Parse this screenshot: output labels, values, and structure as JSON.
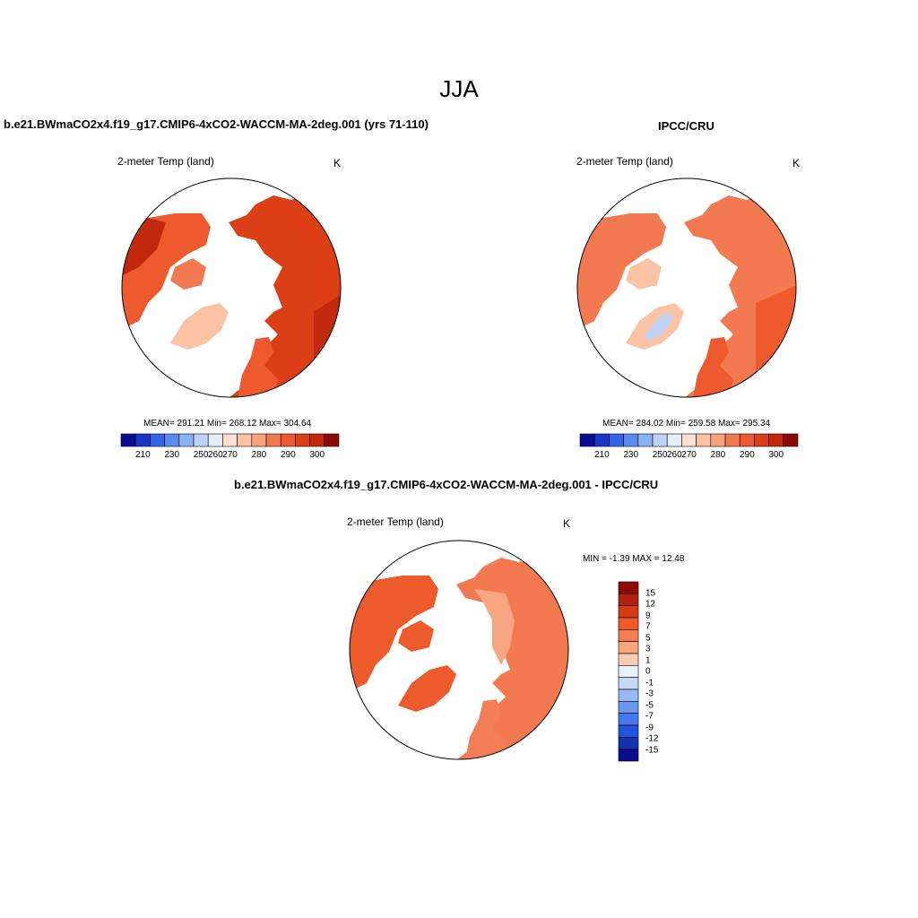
{
  "title": "JJA",
  "panels": [
    {
      "id": "model",
      "subtitle": "b.e21.BWmaCO2x4.f19_g17.CMIP6-4xCO2-WACCM-MA-2deg.001 (yrs 71-110)",
      "variable": "2-meter Temp (land)",
      "units": "K",
      "stats": "MEAN= 291.21   Min= 268.12   Max= 304.64",
      "colorbar_labels": [
        "210",
        "230",
        "250",
        "260",
        "270",
        "280",
        "290",
        "300"
      ]
    },
    {
      "id": "obs",
      "subtitle": "IPCC/CRU",
      "variable": "2-meter Temp (land)",
      "units": "K",
      "stats": "MEAN= 284.02   Min= 259.58   Max= 295.34",
      "colorbar_labels": [
        "210",
        "230",
        "250",
        "260",
        "270",
        "280",
        "290",
        "300"
      ]
    },
    {
      "id": "diff",
      "subtitle": "b.e21.BWmaCO2x4.f19_g17.CMIP6-4xCO2-WACCM-MA-2deg.001 - IPCC/CRU",
      "variable": "2-meter Temp (land)",
      "units": "K",
      "stats": "MIN =  -1.39 MAX =  12.48",
      "colorbar_labels": [
        "15",
        "12",
        "9",
        "7",
        "5",
        "3",
        "1",
        "0",
        "-1",
        "-3",
        "-5",
        "-7",
        "-9",
        "-12",
        "-15"
      ]
    }
  ],
  "colormap_abs": [
    "#0a0d8f",
    "#1a35c4",
    "#3565e6",
    "#5a8cf0",
    "#8cb1f2",
    "#bcd3f5",
    "#e3eefb",
    "#fde0cf",
    "#fbc2a3",
    "#f7a07a",
    "#f37a50",
    "#ec5a2e",
    "#dc3e16",
    "#c2280b",
    "#8e0b05"
  ],
  "colormap_diff": [
    "#8e0b05",
    "#b4200a",
    "#d83a12",
    "#ed5a2b",
    "#f37e55",
    "#f8a582",
    "#fbccb4",
    "#e8f0fb",
    "#c6d8f6",
    "#98b9f1",
    "#6d97ee",
    "#4478ec",
    "#2254dc",
    "#1232b0",
    "#0a0d8f"
  ]
}
